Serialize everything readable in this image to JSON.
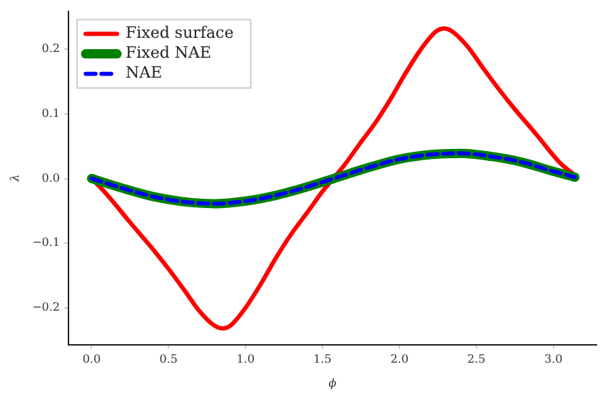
{
  "chart_data": {
    "type": "line",
    "xlabel": "ϕ",
    "ylabel": "λ",
    "xlim": [
      -0.15,
      3.28
    ],
    "ylim": [
      -0.257,
      0.259
    ],
    "xticks": [
      {
        "value": 0,
        "label": "0.0"
      },
      {
        "value": 0.5,
        "label": "0.5"
      },
      {
        "value": 1,
        "label": "1.0"
      },
      {
        "value": 1.5,
        "label": "1.5"
      },
      {
        "value": 2,
        "label": "2.0"
      },
      {
        "value": 2.5,
        "label": "2.5"
      },
      {
        "value": 3,
        "label": "3.0"
      }
    ],
    "yticks": [
      {
        "value": -0.2,
        "label": "−0.2"
      },
      {
        "value": -0.1,
        "label": "−0.1"
      },
      {
        "value": 0,
        "label": "0.0"
      },
      {
        "value": 0.1,
        "label": "0.1"
      },
      {
        "value": 0.2,
        "label": "0.2"
      }
    ],
    "grid": false,
    "legend": "top left",
    "marker": "none",
    "series": [
      {
        "name": "Fixed surface",
        "color": "#ff0000",
        "line_style": "solid",
        "x": [
          0,
          0.1,
          0.25,
          0.4,
          0.5,
          0.6,
          0.7,
          0.8,
          0.85,
          0.9,
          1.0,
          1.1,
          1.2,
          1.3,
          1.4,
          1.5,
          1.57,
          1.64,
          1.74,
          1.84,
          1.94,
          2.04,
          2.14,
          2.24,
          2.29,
          2.34,
          2.44,
          2.54,
          2.64,
          2.74,
          2.89,
          3.04,
          3.14
        ],
        "values": [
          0,
          -0.025,
          -0.068,
          -0.11,
          -0.14,
          -0.172,
          -0.205,
          -0.228,
          -0.232,
          -0.228,
          -0.2,
          -0.163,
          -0.122,
          -0.085,
          -0.053,
          -0.02,
          0,
          0.02,
          0.053,
          0.085,
          0.122,
          0.163,
          0.2,
          0.228,
          0.232,
          0.228,
          0.205,
          0.172,
          0.14,
          0.11,
          0.068,
          0.025,
          0.005
        ]
      },
      {
        "name": "Fixed NAE",
        "color": "#008000",
        "line_style": "solid",
        "x": [
          0,
          0.2,
          0.4,
          0.6,
          0.8,
          1.0,
          1.2,
          1.4,
          1.6,
          1.8,
          2.0,
          2.2,
          2.4,
          2.6,
          2.8,
          3.0,
          3.14
        ],
        "values": [
          0,
          -0.015,
          -0.028,
          -0.036,
          -0.039,
          -0.035,
          -0.026,
          -0.013,
          0.002,
          0.017,
          0.03,
          0.037,
          0.039,
          0.034,
          0.025,
          0.011,
          0.002
        ]
      },
      {
        "name": "NAE",
        "color": "#0000ff",
        "line_style": "dashed",
        "x": [
          0,
          0.2,
          0.4,
          0.6,
          0.8,
          1.0,
          1.2,
          1.4,
          1.6,
          1.8,
          2.0,
          2.2,
          2.4,
          2.6,
          2.8,
          3.0,
          3.14
        ],
        "values": [
          0,
          -0.015,
          -0.028,
          -0.036,
          -0.039,
          -0.035,
          -0.026,
          -0.013,
          0.002,
          0.017,
          0.03,
          0.037,
          0.039,
          0.034,
          0.025,
          0.011,
          0.002
        ]
      }
    ]
  }
}
